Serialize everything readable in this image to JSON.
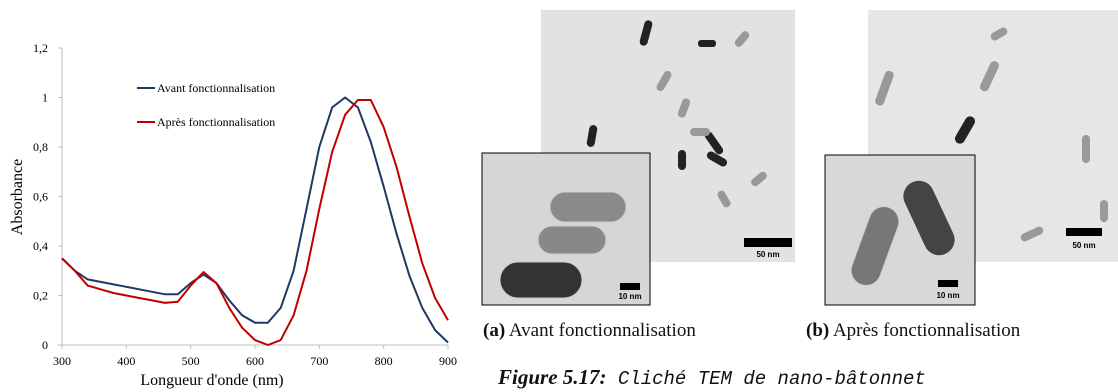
{
  "chart_data": {
    "type": "line",
    "x": [
      300,
      320,
      340,
      360,
      380,
      400,
      420,
      440,
      460,
      480,
      500,
      520,
      540,
      560,
      580,
      600,
      620,
      640,
      660,
      680,
      700,
      720,
      740,
      760,
      780,
      800,
      820,
      840,
      860,
      880,
      900
    ],
    "series": [
      {
        "name": "Avant fonctionnalisation",
        "color": "#1f3864",
        "values": [
          0.35,
          0.3,
          0.265,
          0.255,
          0.245,
          0.235,
          0.225,
          0.215,
          0.205,
          0.205,
          0.25,
          0.285,
          0.25,
          0.18,
          0.12,
          0.09,
          0.09,
          0.15,
          0.3,
          0.55,
          0.8,
          0.96,
          1.0,
          0.96,
          0.82,
          0.64,
          0.45,
          0.28,
          0.15,
          0.06,
          0.01
        ]
      },
      {
        "name": "Après fonctionnalisation",
        "color": "#c00000",
        "values": [
          0.35,
          0.3,
          0.24,
          0.225,
          0.21,
          0.2,
          0.19,
          0.18,
          0.17,
          0.175,
          0.24,
          0.295,
          0.25,
          0.15,
          0.07,
          0.02,
          0.0,
          0.02,
          0.12,
          0.3,
          0.55,
          0.78,
          0.93,
          0.99,
          0.99,
          0.88,
          0.72,
          0.52,
          0.33,
          0.19,
          0.1
        ]
      }
    ],
    "x_label": "Longueur d'onde (nm)",
    "y_label": "Absorbance",
    "xlim": [
      300,
      900
    ],
    "xticks": [
      300,
      400,
      500,
      600,
      700,
      800,
      900
    ],
    "ylim": [
      0,
      1.2
    ],
    "yticks": [
      0,
      {
        "value": 0.2,
        "label": "0,2"
      },
      {
        "value": 0.4,
        "label": "0,4"
      },
      {
        "value": 0.6,
        "label": "0,6"
      },
      {
        "value": 0.8,
        "label": "0,8"
      },
      1,
      {
        "value": 1.2,
        "label": "1,2"
      }
    ],
    "grid": false,
    "legend": "upper left"
  },
  "figure": {
    "panels": [
      {
        "label": "(a)",
        "caption": "Avant fonctionnalisation",
        "scale_main": "50 nm",
        "scale_inset": "10 nm"
      },
      {
        "label": "(b)",
        "caption": "Après fonctionnalisation",
        "scale_main": "50 nm",
        "scale_inset": "10 nm"
      }
    ],
    "caption_label": "Figure 5.17:",
    "caption_text": "Cliché TEM de nano-bâtonnet"
  }
}
